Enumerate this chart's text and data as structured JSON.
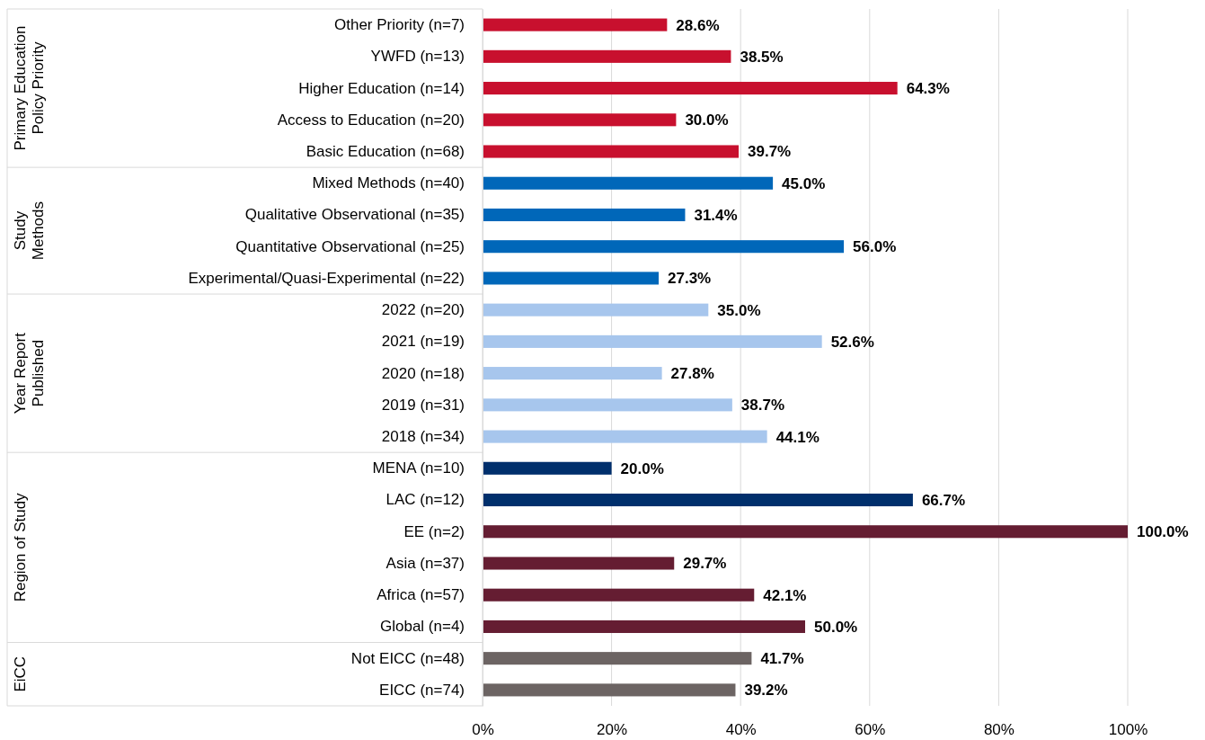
{
  "chart_data": {
    "type": "bar",
    "orientation": "horizontal",
    "categories": [
      "Other Priority (n=7)",
      "YWFD (n=13)",
      "Higher Education (n=14)",
      "Access to Education (n=20)",
      "Basic Education (n=68)",
      "Mixed Methods (n=40)",
      "Qualitative Observational (n=35)",
      "Quantitative Observational (n=25)",
      "Experimental/Quasi-Experimental (n=22)",
      "2022 (n=20)",
      "2021 (n=19)",
      "2020 (n=18)",
      "2019 (n=31)",
      "2018 (n=34)",
      "MENA (n=10)",
      "LAC (n=12)",
      "EE (n=2)",
      "Asia (n=37)",
      "Africa (n=57)",
      "Global (n=4)",
      "Not EICC (n=48)",
      "EICC (n=74)"
    ],
    "values": [
      28.6,
      38.5,
      64.3,
      30.0,
      39.7,
      45.0,
      31.4,
      56.0,
      27.3,
      35.0,
      52.6,
      27.8,
      38.7,
      44.1,
      20.0,
      66.7,
      100.0,
      29.7,
      42.1,
      50.0,
      41.7,
      39.2
    ],
    "value_labels": [
      "28.6%",
      "38.5%",
      "64.3%",
      "30.0%",
      "39.7%",
      "45.0%",
      "31.4%",
      "56.0%",
      "27.3%",
      "35.0%",
      "52.6%",
      "27.8%",
      "38.7%",
      "44.1%",
      "20.0%",
      "66.7%",
      "100.0%",
      "29.7%",
      "42.1%",
      "50.0%",
      "41.7%",
      "39.2%"
    ],
    "colors": [
      "#c8102e",
      "#c8102e",
      "#c8102e",
      "#c8102e",
      "#c8102e",
      "#0067b9",
      "#0067b9",
      "#0067b9",
      "#0067b9",
      "#a7c6ed",
      "#a7c6ed",
      "#a7c6ed",
      "#a7c6ed",
      "#a7c6ed",
      "#002f6c",
      "#002f6c",
      "#651d32",
      "#651d32",
      "#651d32",
      "#651d32",
      "#6c6463",
      "#6c6463"
    ],
    "xlim": [
      0,
      100
    ],
    "xticks": [
      {
        "value": 0,
        "label": "0%"
      },
      {
        "value": 20,
        "label": "20%"
      },
      {
        "value": 40,
        "label": "40%"
      },
      {
        "value": 60,
        "label": "60%"
      },
      {
        "value": 80,
        "label": "80%"
      },
      {
        "value": 100,
        "label": "100%"
      }
    ],
    "grid": "x",
    "annotations": [
      "Primary Education Policy Priority",
      "Study Methods",
      "Year Report Published",
      "Region of Study",
      "EiCC"
    ]
  }
}
